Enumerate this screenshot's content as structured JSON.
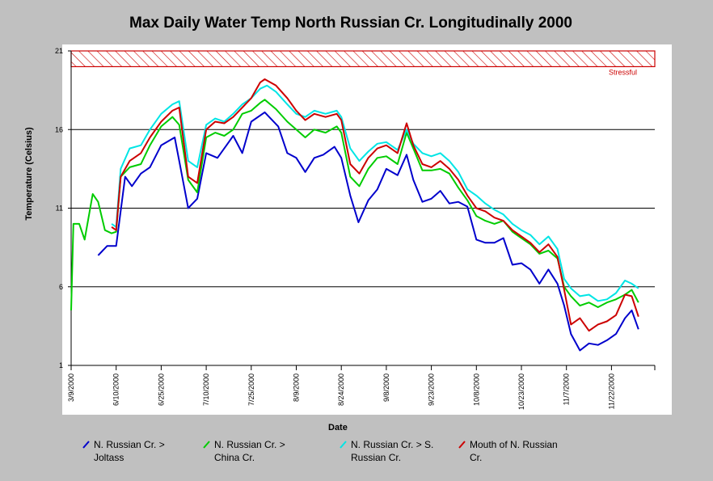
{
  "chart_data": {
    "type": "line",
    "title": "Max Daily Water Temp North Russian Cr. Longitudinally 2000",
    "xlabel": "Date",
    "ylabel": "Temperature (Celsius)",
    "ylim": [
      1,
      21
    ],
    "yticks": [
      1,
      6,
      11,
      16,
      21
    ],
    "grid": "horizontal",
    "xticks": [
      "3/9/2000",
      "6/10/2000",
      "6/25/2000",
      "7/10/2000",
      "7/25/2000",
      "8/9/2000",
      "8/24/2000",
      "9/8/2000",
      "9/23/2000",
      "10/8/2000",
      "10/23/2000",
      "11/7/2000",
      "11/22/2000"
    ],
    "threshold": {
      "label": "Stressful",
      "from": 20,
      "to": 21,
      "color": "#cc0000"
    },
    "legend_position": "bottom",
    "series": [
      {
        "name": "N. Russian Cr. > Joltass",
        "color": "#0000cc",
        "points": [
          [
            0.6,
            8
          ],
          [
            0.8,
            8.6
          ],
          [
            1.0,
            8.6
          ],
          [
            1.2,
            13
          ],
          [
            1.35,
            12.4
          ],
          [
            1.55,
            13.2
          ],
          [
            1.75,
            13.6
          ],
          [
            2.0,
            15
          ],
          [
            2.3,
            15.5
          ],
          [
            2.4,
            14
          ],
          [
            2.6,
            11
          ],
          [
            2.8,
            11.6
          ],
          [
            3.0,
            14.5
          ],
          [
            3.25,
            14.2
          ],
          [
            3.45,
            15
          ],
          [
            3.6,
            15.6
          ],
          [
            3.8,
            14.5
          ],
          [
            4.0,
            16.5
          ],
          [
            4.3,
            17.1
          ],
          [
            4.6,
            16.2
          ],
          [
            4.8,
            14.5
          ],
          [
            5.0,
            14.2
          ],
          [
            5.2,
            13.3
          ],
          [
            5.4,
            14.2
          ],
          [
            5.6,
            14.4
          ],
          [
            5.85,
            14.9
          ],
          [
            6.0,
            14.2
          ],
          [
            6.2,
            11.8
          ],
          [
            6.38,
            10.1
          ],
          [
            6.6,
            11.5
          ],
          [
            6.8,
            12.2
          ],
          [
            7.0,
            13.5
          ],
          [
            7.25,
            13.1
          ],
          [
            7.45,
            14.4
          ],
          [
            7.6,
            12.8
          ],
          [
            7.8,
            11.4
          ],
          [
            8.0,
            11.6
          ],
          [
            8.2,
            12.1
          ],
          [
            8.4,
            11.3
          ],
          [
            8.6,
            11.4
          ],
          [
            8.8,
            11.1
          ],
          [
            9.0,
            9
          ],
          [
            9.2,
            8.8
          ],
          [
            9.4,
            8.8
          ],
          [
            9.6,
            9.1
          ],
          [
            9.8,
            7.4
          ],
          [
            10.0,
            7.5
          ],
          [
            10.2,
            7.1
          ],
          [
            10.4,
            6.2
          ],
          [
            10.6,
            7.1
          ],
          [
            10.8,
            6.2
          ],
          [
            10.95,
            4.8
          ],
          [
            11.1,
            3
          ],
          [
            11.3,
            1.95
          ],
          [
            11.5,
            2.4
          ],
          [
            11.7,
            2.3
          ],
          [
            11.9,
            2.6
          ],
          [
            12.1,
            3
          ],
          [
            12.3,
            4
          ],
          [
            12.45,
            4.5
          ],
          [
            12.6,
            3.3
          ]
        ]
      },
      {
        "name": "N. Russian Cr. > China Cr.",
        "color": "#00cc00",
        "points": [
          [
            0,
            4.5
          ],
          [
            0.05,
            10
          ],
          [
            0.18,
            10
          ],
          [
            0.3,
            9
          ],
          [
            0.48,
            11.9
          ],
          [
            0.6,
            11.4
          ],
          [
            0.75,
            9.6
          ],
          [
            0.9,
            9.4
          ],
          [
            1.0,
            9.5
          ],
          [
            1.1,
            13
          ],
          [
            1.3,
            13.6
          ],
          [
            1.55,
            13.8
          ],
          [
            1.75,
            15
          ],
          [
            2.0,
            16.2
          ],
          [
            2.25,
            16.8
          ],
          [
            2.4,
            16.3
          ],
          [
            2.6,
            12.8
          ],
          [
            2.8,
            12
          ],
          [
            3.0,
            15.5
          ],
          [
            3.2,
            15.8
          ],
          [
            3.4,
            15.6
          ],
          [
            3.6,
            16
          ],
          [
            3.8,
            17
          ],
          [
            4.0,
            17.2
          ],
          [
            4.2,
            17.7
          ],
          [
            4.3,
            17.9
          ],
          [
            4.55,
            17.3
          ],
          [
            4.8,
            16.5
          ],
          [
            5.0,
            16
          ],
          [
            5.2,
            15.5
          ],
          [
            5.4,
            16
          ],
          [
            5.65,
            15.8
          ],
          [
            5.9,
            16.2
          ],
          [
            6.0,
            15.8
          ],
          [
            6.2,
            13
          ],
          [
            6.4,
            12.4
          ],
          [
            6.6,
            13.5
          ],
          [
            6.8,
            14.2
          ],
          [
            7.0,
            14.3
          ],
          [
            7.25,
            13.8
          ],
          [
            7.45,
            15.8
          ],
          [
            7.6,
            14.8
          ],
          [
            7.8,
            13.4
          ],
          [
            8.0,
            13.4
          ],
          [
            8.2,
            13.5
          ],
          [
            8.4,
            13.2
          ],
          [
            8.6,
            12.3
          ],
          [
            8.8,
            11.5
          ],
          [
            9.0,
            10.5
          ],
          [
            9.2,
            10.2
          ],
          [
            9.4,
            10
          ],
          [
            9.6,
            10.2
          ],
          [
            9.8,
            9.5
          ],
          [
            10.0,
            9.1
          ],
          [
            10.2,
            8.7
          ],
          [
            10.4,
            8.1
          ],
          [
            10.6,
            8.3
          ],
          [
            10.8,
            7.8
          ],
          [
            10.95,
            6
          ],
          [
            11.1,
            5.4
          ],
          [
            11.3,
            4.8
          ],
          [
            11.5,
            5
          ],
          [
            11.7,
            4.7
          ],
          [
            11.9,
            5
          ],
          [
            12.1,
            5.2
          ],
          [
            12.3,
            5.5
          ],
          [
            12.45,
            5.8
          ],
          [
            12.6,
            5
          ]
        ]
      },
      {
        "name": "N. Russian Cr. > S. Russian Cr.",
        "color": "#00e5e5",
        "points": [
          [
            0.9,
            10
          ],
          [
            1.0,
            9.8
          ],
          [
            1.1,
            13.5
          ],
          [
            1.3,
            14.8
          ],
          [
            1.55,
            15
          ],
          [
            1.75,
            16
          ],
          [
            2.0,
            17
          ],
          [
            2.25,
            17.6
          ],
          [
            2.4,
            17.8
          ],
          [
            2.6,
            14
          ],
          [
            2.8,
            13.6
          ],
          [
            3.0,
            16.3
          ],
          [
            3.2,
            16.7
          ],
          [
            3.4,
            16.5
          ],
          [
            3.6,
            17
          ],
          [
            3.8,
            17.6
          ],
          [
            4.0,
            18
          ],
          [
            4.2,
            18.6
          ],
          [
            4.35,
            18.8
          ],
          [
            4.55,
            18.4
          ],
          [
            4.8,
            17.6
          ],
          [
            5.0,
            17
          ],
          [
            5.2,
            16.8
          ],
          [
            5.4,
            17.2
          ],
          [
            5.65,
            17
          ],
          [
            5.9,
            17.2
          ],
          [
            6.0,
            16.8
          ],
          [
            6.2,
            14.8
          ],
          [
            6.4,
            14
          ],
          [
            6.6,
            14.6
          ],
          [
            6.8,
            15.1
          ],
          [
            7.0,
            15.2
          ],
          [
            7.25,
            14.7
          ],
          [
            7.45,
            16
          ],
          [
            7.6,
            15.1
          ],
          [
            7.8,
            14.5
          ],
          [
            8.0,
            14.3
          ],
          [
            8.2,
            14.5
          ],
          [
            8.4,
            14
          ],
          [
            8.6,
            13.3
          ],
          [
            8.8,
            12.2
          ],
          [
            9.0,
            11.8
          ],
          [
            9.2,
            11.3
          ],
          [
            9.4,
            10.9
          ],
          [
            9.6,
            10.6
          ],
          [
            9.8,
            10
          ],
          [
            10.0,
            9.6
          ],
          [
            10.2,
            9.3
          ],
          [
            10.4,
            8.7
          ],
          [
            10.6,
            9.2
          ],
          [
            10.8,
            8.4
          ],
          [
            10.95,
            6.5
          ],
          [
            11.1,
            5.9
          ],
          [
            11.3,
            5.4
          ],
          [
            11.5,
            5.5
          ],
          [
            11.7,
            5.1
          ],
          [
            11.9,
            5.2
          ],
          [
            12.1,
            5.6
          ],
          [
            12.3,
            6.4
          ],
          [
            12.45,
            6.2
          ],
          [
            12.6,
            5.9
          ]
        ]
      },
      {
        "name": "Mouth of N. Russian Cr.",
        "color": "#cc0000",
        "points": [
          [
            0.9,
            9.8
          ],
          [
            1.0,
            9.6
          ],
          [
            1.1,
            13
          ],
          [
            1.3,
            14
          ],
          [
            1.55,
            14.5
          ],
          [
            1.75,
            15.5
          ],
          [
            2.0,
            16.5
          ],
          [
            2.25,
            17.2
          ],
          [
            2.4,
            17.4
          ],
          [
            2.6,
            13
          ],
          [
            2.8,
            12.6
          ],
          [
            3.0,
            16
          ],
          [
            3.2,
            16.5
          ],
          [
            3.4,
            16.4
          ],
          [
            3.6,
            16.8
          ],
          [
            3.8,
            17.4
          ],
          [
            4.0,
            18
          ],
          [
            4.2,
            19
          ],
          [
            4.3,
            19.2
          ],
          [
            4.55,
            18.8
          ],
          [
            4.8,
            18
          ],
          [
            5.0,
            17.2
          ],
          [
            5.2,
            16.6
          ],
          [
            5.4,
            17
          ],
          [
            5.65,
            16.8
          ],
          [
            5.9,
            17
          ],
          [
            6.0,
            16.6
          ],
          [
            6.2,
            13.8
          ],
          [
            6.4,
            13.2
          ],
          [
            6.6,
            14.2
          ],
          [
            6.8,
            14.8
          ],
          [
            7.0,
            15
          ],
          [
            7.25,
            14.5
          ],
          [
            7.45,
            16.4
          ],
          [
            7.6,
            15
          ],
          [
            7.8,
            13.8
          ],
          [
            8.0,
            13.6
          ],
          [
            8.2,
            14
          ],
          [
            8.4,
            13.5
          ],
          [
            8.6,
            12.8
          ],
          [
            8.8,
            11.8
          ],
          [
            9.0,
            11
          ],
          [
            9.2,
            10.8
          ],
          [
            9.4,
            10.4
          ],
          [
            9.6,
            10.2
          ],
          [
            9.8,
            9.6
          ],
          [
            10.0,
            9.2
          ],
          [
            10.2,
            8.8
          ],
          [
            10.4,
            8.2
          ],
          [
            10.6,
            8.7
          ],
          [
            10.8,
            7.9
          ],
          [
            10.95,
            5.8
          ],
          [
            11.1,
            3.6
          ],
          [
            11.3,
            4
          ],
          [
            11.5,
            3.2
          ],
          [
            11.7,
            3.6
          ],
          [
            11.9,
            3.8
          ],
          [
            12.1,
            4.2
          ],
          [
            12.3,
            5.5
          ],
          [
            12.45,
            5.4
          ],
          [
            12.6,
            4.1
          ]
        ]
      }
    ]
  }
}
